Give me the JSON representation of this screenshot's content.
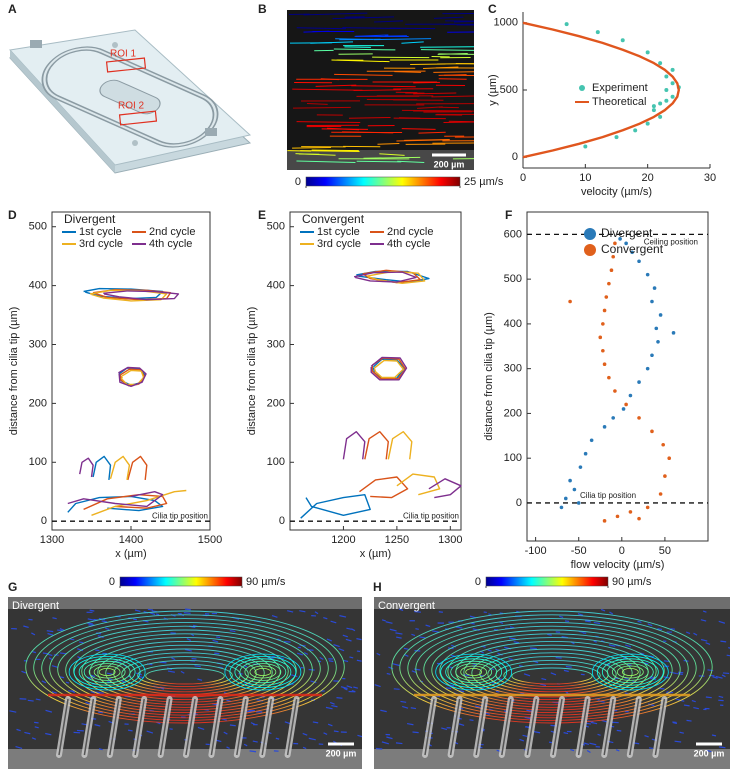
{
  "figure": {
    "panel_labels": [
      "A",
      "B",
      "C",
      "D",
      "E",
      "F",
      "G",
      "H"
    ],
    "schematic": {
      "labels": [
        "ROI 1",
        "ROI 2"
      ]
    },
    "images": [
      {
        "colorbar": {
          "lim": [
            0,
            25
          ],
          "ticks": [
            0,
            {
              "value": 25,
              "label": "25 µm/s"
            }
          ]
        },
        "scale_bar": "200 µm"
      },
      {
        "title": "Divergent",
        "colorbar": {
          "lim": [
            0,
            90
          ],
          "ticks": [
            0,
            {
              "value": 90,
              "label": "90 µm/s"
            }
          ]
        },
        "scale_bar": "200 µm"
      },
      {
        "title": "Convergent",
        "colorbar": {
          "lim": [
            0,
            90
          ],
          "ticks": [
            0,
            {
              "value": 90,
              "label": "90 µm/s"
            }
          ]
        },
        "scale_bar": "200 µm"
      }
    ]
  },
  "chart_data": [
    {
      "type": "scatter",
      "xlabel": "velocity (µm/s)",
      "ylabel": "y (µm)",
      "xlim": [
        0,
        30
      ],
      "ylim": [
        -80,
        1080
      ],
      "xticks": [
        0,
        10,
        20,
        30
      ],
      "yticks": [
        0,
        500,
        1000
      ],
      "frame": false,
      "legend": "center right",
      "series": [
        {
          "name": "Experiment",
          "color": "#45c4b0",
          "style": "markers",
          "x": [
            7,
            10,
            15,
            18,
            20,
            22,
            21,
            22,
            23,
            21,
            24,
            23,
            25,
            24,
            23,
            24,
            22,
            20,
            16,
            12
          ],
          "y": [
            990,
            80,
            150,
            200,
            250,
            300,
            350,
            400,
            420,
            380,
            450,
            500,
            520,
            550,
            600,
            650,
            700,
            780,
            870,
            930
          ]
        },
        {
          "name": "Theoretical",
          "color": "#e0561e",
          "style": "line",
          "x": [
            0,
            4.75,
            9,
            12.75,
            16,
            18.75,
            21,
            22.75,
            24,
            24.75,
            25,
            24.75,
            24,
            22.75,
            21,
            18.75,
            16,
            12.75,
            9,
            4.75,
            0
          ],
          "y": [
            0,
            50,
            100,
            150,
            200,
            250,
            300,
            350,
            400,
            450,
            500,
            550,
            600,
            650,
            700,
            750,
            800,
            850,
            900,
            950,
            1000
          ]
        }
      ]
    },
    {
      "type": "line",
      "title": "Divergent",
      "xlabel": "x (µm)",
      "ylabel": "distance from cilia tip (µm)",
      "xlim": [
        1300,
        1500
      ],
      "ylim": [
        -15,
        525
      ],
      "xticks": [
        1300,
        1400,
        1500
      ],
      "yticks": [
        0,
        100,
        200,
        300,
        400,
        500
      ],
      "frame": true,
      "legend": "upper left",
      "hlines": [
        {
          "value": 0,
          "label": "Cilia tip position"
        }
      ],
      "series": [
        {
          "name": "1st cycle",
          "color": "#0072bd",
          "x": [
            1340,
            1360,
            1400,
            1440,
            1432,
            1400,
            1360,
            1342,
            null,
            1385,
            1395,
            1410,
            1418,
            1412,
            1400,
            1388,
            1386,
            null,
            1352,
            1356,
            1366,
            1374,
            1372,
            null,
            1320,
            1330,
            1360,
            1400,
            1430,
            1440,
            1410,
            1370
          ],
          "y": [
            390,
            395,
            394,
            390,
            380,
            378,
            382,
            389,
            null,
            250,
            260,
            259,
            248,
            235,
            231,
            238,
            249,
            null,
            75,
            100,
            110,
            95,
            70,
            null,
            15,
            30,
            40,
            42,
            35,
            25,
            18,
            22
          ]
        },
        {
          "name": "2nd cycle",
          "color": "#d95319",
          "x": [
            1352,
            1380,
            1420,
            1450,
            1445,
            1410,
            1370,
            1354,
            null,
            1386,
            1398,
            1412,
            1417,
            1410,
            1397,
            1387,
            1387,
            null,
            1396,
            1402,
            1412,
            1420,
            1418,
            null,
            1340,
            1370,
            1410,
            1440,
            1445,
            1420,
            1380
          ],
          "y": [
            388,
            393,
            392,
            388,
            378,
            376,
            380,
            387,
            null,
            248,
            258,
            257,
            246,
            233,
            230,
            240,
            247,
            null,
            70,
            100,
            110,
            95,
            70,
            null,
            20,
            38,
            45,
            42,
            30,
            22,
            25
          ]
        },
        {
          "name": "3rd cycle",
          "color": "#edb120",
          "x": [
            1348,
            1375,
            1415,
            1445,
            1438,
            1400,
            1365,
            1350,
            null,
            1388,
            1400,
            1413,
            1416,
            1408,
            1395,
            1388,
            1389,
            null,
            1374,
            1380,
            1390,
            1398,
            1395,
            null,
            1350,
            1380,
            1420,
            1455,
            1470
          ],
          "y": [
            386,
            392,
            391,
            386,
            376,
            374,
            379,
            385,
            null,
            246,
            256,
            255,
            244,
            232,
            232,
            242,
            245,
            null,
            72,
            100,
            110,
            95,
            70,
            null,
            10,
            25,
            35,
            50,
            52
          ]
        },
        {
          "name": "4th cycle",
          "color": "#7e2f8e",
          "x": [
            1365,
            1395,
            1430,
            1460,
            1455,
            1420,
            1385,
            1366,
            null,
            1384,
            1396,
            1411,
            1419,
            1414,
            1400,
            1386,
            1385,
            null,
            1335,
            1338,
            1346,
            1352,
            1350,
            null,
            1320,
            1340,
            1380,
            1420,
            1440,
            1430,
            1400
          ],
          "y": [
            387,
            391,
            390,
            386,
            378,
            376,
            381,
            386,
            null,
            252,
            261,
            260,
            250,
            236,
            229,
            236,
            251,
            null,
            80,
            100,
            107,
            95,
            75,
            null,
            30,
            38,
            30,
            25,
            45,
            50,
            42
          ]
        }
      ]
    },
    {
      "type": "line",
      "title": "Convergent",
      "xlabel": "x (µm)",
      "ylabel": "distance from cilia tip (µm)",
      "xlim": [
        1150,
        1310
      ],
      "ylim": [
        -15,
        525
      ],
      "xticks": [
        1200,
        1250,
        1300
      ],
      "yticks": [
        0,
        100,
        200,
        300,
        400,
        500
      ],
      "frame": true,
      "legend": "upper left",
      "hlines": [
        {
          "value": 0,
          "label": "Cilia tip position"
        }
      ],
      "series": [
        {
          "name": "1st cycle",
          "color": "#0072bd",
          "x": [
            1212,
            1230,
            1260,
            1280,
            1262,
            1240,
            1214,
            null,
            1228,
            1236,
            1250,
            1257,
            1250,
            1237,
            1229,
            1228,
            null,
            1160,
            1175,
            1200,
            1220,
            1225,
            1200,
            1170,
            1165
          ],
          "y": [
            418,
            424,
            424,
            412,
            406,
            410,
            416,
            null,
            262,
            275,
            274,
            260,
            243,
            241,
            252,
            261,
            null,
            5,
            30,
            40,
            45,
            20,
            10,
            25,
            40
          ]
        },
        {
          "name": "2nd cycle",
          "color": "#d95319",
          "x": [
            1218,
            1240,
            1265,
            1272,
            1250,
            1225,
            1219,
            null,
            1227,
            1237,
            1252,
            1258,
            1251,
            1235,
            1227,
            1227,
            null,
            1220,
            1224,
            1234,
            1242,
            1240,
            null,
            1215,
            1230,
            1250,
            1260,
            1245,
            1225
          ],
          "y": [
            420,
            426,
            422,
            410,
            405,
            412,
            419,
            null,
            265,
            277,
            275,
            258,
            242,
            242,
            255,
            264,
            null,
            105,
            140,
            152,
            135,
            105,
            null,
            50,
            70,
            75,
            55,
            40,
            42
          ]
        },
        {
          "name": "3rd cycle",
          "color": "#edb120",
          "x": [
            1222,
            1245,
            1270,
            1276,
            1255,
            1232,
            1223,
            null,
            1229,
            1238,
            1250,
            1256,
            1248,
            1236,
            1230,
            1229,
            null,
            1242,
            1246,
            1256,
            1264,
            1262,
            null,
            1250,
            1265,
            1285,
            1290,
            1270
          ],
          "y": [
            416,
            424,
            421,
            408,
            404,
            410,
            415,
            null,
            260,
            273,
            272,
            258,
            244,
            244,
            254,
            259,
            null,
            105,
            140,
            152,
            135,
            105,
            null,
            60,
            80,
            75,
            55,
            45
          ]
        },
        {
          "name": "4th cycle",
          "color": "#7e2f8e",
          "x": [
            1210,
            1228,
            1255,
            1268,
            1250,
            1225,
            1211,
            null,
            1226,
            1236,
            1253,
            1259,
            1252,
            1234,
            1226,
            1226,
            null,
            1200,
            1203,
            1212,
            1220,
            1218,
            null,
            1280,
            1295,
            1310,
            1300,
            1285
          ],
          "y": [
            415,
            422,
            423,
            414,
            406,
            408,
            414,
            null,
            263,
            278,
            277,
            260,
            240,
            240,
            253,
            262,
            null,
            105,
            140,
            152,
            135,
            105,
            null,
            55,
            72,
            60,
            45,
            40
          ]
        }
      ]
    },
    {
      "type": "scatter",
      "xlabel": "flow velocity (µm/s)",
      "ylabel": "distance from cilia tip (µm)",
      "xlim": [
        -110,
        100
      ],
      "ylim": [
        -85,
        650
      ],
      "xticks": [
        -100,
        -50,
        0,
        50
      ],
      "yticks": [
        0,
        100,
        200,
        300,
        400,
        500,
        600
      ],
      "frame": true,
      "legend": "upper left",
      "hlines": [
        {
          "value": 0,
          "label": "Cilia tip position"
        },
        {
          "value": 600,
          "label": "Ceiling position"
        }
      ],
      "series": [
        {
          "name": "Divergent",
          "color": "#2a7ab8",
          "style": "markers",
          "x": [
            -65,
            -55,
            -60,
            -48,
            -42,
            -35,
            -20,
            -10,
            2,
            10,
            20,
            30,
            35,
            42,
            40,
            45,
            35,
            38,
            30,
            20,
            12,
            5,
            -2,
            -70,
            60,
            -50
          ],
          "y": [
            10,
            30,
            50,
            80,
            110,
            140,
            170,
            190,
            210,
            240,
            270,
            300,
            330,
            360,
            390,
            420,
            450,
            480,
            510,
            540,
            560,
            580,
            590,
            -10,
            380,
            0
          ]
        },
        {
          "name": "Convergent",
          "color": "#e0601c",
          "style": "markers",
          "x": [
            -5,
            10,
            30,
            -20,
            45,
            50,
            55,
            48,
            35,
            20,
            5,
            -8,
            -15,
            -20,
            -22,
            -25,
            -22,
            -20,
            -18,
            -15,
            -12,
            -10,
            -8,
            -60,
            20
          ],
          "y": [
            -30,
            -20,
            -10,
            -40,
            20,
            60,
            100,
            130,
            160,
            190,
            220,
            250,
            280,
            310,
            340,
            370,
            400,
            430,
            460,
            490,
            520,
            550,
            580,
            450,
            -35
          ]
        }
      ]
    }
  ]
}
